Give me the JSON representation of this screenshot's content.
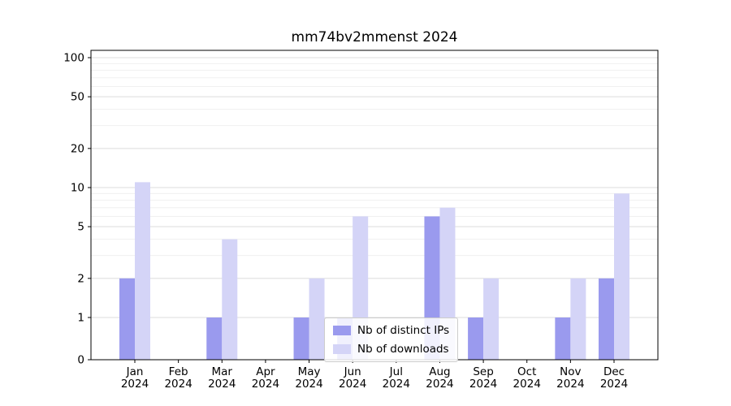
{
  "chart_data": {
    "type": "bar",
    "title": "mm74bv2mmenst 2024",
    "categories": [
      "Jan",
      "Feb",
      "Mar",
      "Apr",
      "May",
      "Jun",
      "Jul",
      "Aug",
      "Sep",
      "Oct",
      "Nov",
      "Dec"
    ],
    "year": "2024",
    "series": [
      {
        "name": "Nb of distinct IPs",
        "color": "#9a9aee",
        "values": [
          2,
          0,
          1,
          0,
          1,
          1,
          0,
          6,
          1,
          0,
          1,
          2
        ]
      },
      {
        "name": "Nb of downloads",
        "color": "#d4d4f7",
        "values": [
          11,
          0,
          4,
          0,
          2,
          6,
          0,
          7,
          2,
          0,
          2,
          9
        ]
      }
    ],
    "yscale": "symlog",
    "yticks": [
      0,
      1,
      2,
      5,
      10,
      20,
      50,
      100
    ],
    "minor_yticks": [
      3,
      4,
      6,
      7,
      8,
      9,
      30,
      40,
      60,
      70,
      80,
      90
    ],
    "ylim": [
      0,
      115
    ],
    "grid": true,
    "legend_position": "lower center"
  }
}
